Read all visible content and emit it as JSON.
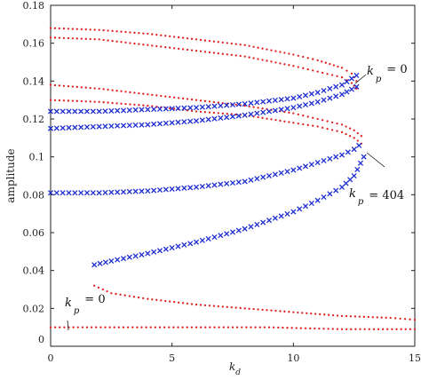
{
  "chart_data": {
    "type": "scatter",
    "title": "",
    "xlabel_main": "k",
    "xlabel_sub": "d",
    "ylabel": "amplitude",
    "xlim": [
      0,
      15
    ],
    "ylim": [
      0,
      0.18
    ],
    "x_ticks": [
      "0",
      "5",
      "10",
      "15"
    ],
    "y_ticks": [
      "0",
      "0.02",
      "0.04",
      "0.06",
      "0.08",
      "0.1",
      "0.12",
      "0.14",
      "0.16",
      "0.18"
    ],
    "grid": false,
    "legend": "none",
    "colors": {
      "red_dots": "#e02020",
      "blue_x": "#1f2fd0"
    },
    "series": [
      {
        "marker": "dot",
        "color": "red",
        "x": [
          0,
          2,
          4,
          6,
          8,
          10,
          11,
          12,
          12.4,
          12.6
        ],
        "y": [
          0.168,
          0.167,
          0.165,
          0.162,
          0.159,
          0.154,
          0.151,
          0.147,
          0.144,
          0.14
        ]
      },
      {
        "marker": "dot",
        "color": "red",
        "x": [
          0,
          2,
          4,
          6,
          8,
          10,
          11,
          12,
          12.4,
          12.6
        ],
        "y": [
          0.163,
          0.162,
          0.159,
          0.156,
          0.153,
          0.148,
          0.145,
          0.142,
          0.139,
          0.136
        ]
      },
      {
        "marker": "dot",
        "color": "red",
        "x": [
          0,
          2,
          4,
          6,
          8,
          10,
          11,
          12,
          12.5,
          12.8
        ],
        "y": [
          0.138,
          0.136,
          0.133,
          0.13,
          0.127,
          0.123,
          0.12,
          0.117,
          0.114,
          0.111
        ]
      },
      {
        "marker": "dot",
        "color": "red",
        "x": [
          0,
          2,
          4,
          6,
          8,
          10,
          11,
          12,
          12.5,
          12.8
        ],
        "y": [
          0.13,
          0.129,
          0.127,
          0.124,
          0.122,
          0.118,
          0.116,
          0.113,
          0.11,
          0.107
        ]
      },
      {
        "marker": "dot",
        "color": "red",
        "x": [
          1.8,
          2.5,
          4,
          6,
          8,
          10,
          12,
          14,
          15
        ],
        "y": [
          0.032,
          0.028,
          0.025,
          0.022,
          0.02,
          0.018,
          0.016,
          0.015,
          0.014
        ]
      },
      {
        "marker": "dot",
        "color": "red",
        "x": [
          0,
          3,
          6,
          9,
          12,
          15
        ],
        "y": [
          0.01,
          0.01,
          0.01,
          0.01,
          0.009,
          0.009
        ]
      },
      {
        "marker": "x",
        "color": "blue",
        "x": [
          0,
          2,
          4,
          6,
          8,
          10,
          11,
          12,
          12.6
        ],
        "y": [
          0.124,
          0.124,
          0.125,
          0.126,
          0.128,
          0.131,
          0.134,
          0.138,
          0.143
        ]
      },
      {
        "marker": "x",
        "color": "blue",
        "x": [
          0,
          2,
          4,
          6,
          8,
          10,
          11,
          12,
          12.6
        ],
        "y": [
          0.115,
          0.116,
          0.117,
          0.119,
          0.122,
          0.126,
          0.129,
          0.133,
          0.137
        ]
      },
      {
        "marker": "x",
        "color": "blue",
        "x": [
          0,
          2,
          4,
          6,
          8,
          9,
          10,
          11,
          12,
          12.5,
          12.7
        ],
        "y": [
          0.081,
          0.081,
          0.082,
          0.084,
          0.087,
          0.09,
          0.093,
          0.097,
          0.101,
          0.104,
          0.106
        ]
      },
      {
        "marker": "x",
        "color": "blue",
        "x": [
          1.8,
          2.5,
          4,
          6,
          8,
          10,
          11,
          12,
          12.5,
          12.9
        ],
        "y": [
          0.043,
          0.045,
          0.049,
          0.055,
          0.062,
          0.071,
          0.077,
          0.084,
          0.09,
          0.1
        ]
      }
    ],
    "annotations": [
      {
        "text_main": "k",
        "text_sub": "p",
        "text_value": "= 0"
      },
      {
        "text_main": "k",
        "text_sub": "p",
        "text_value": "= 404"
      },
      {
        "text_main": "k",
        "text_sub": "p",
        "text_value": "= 0"
      }
    ]
  }
}
